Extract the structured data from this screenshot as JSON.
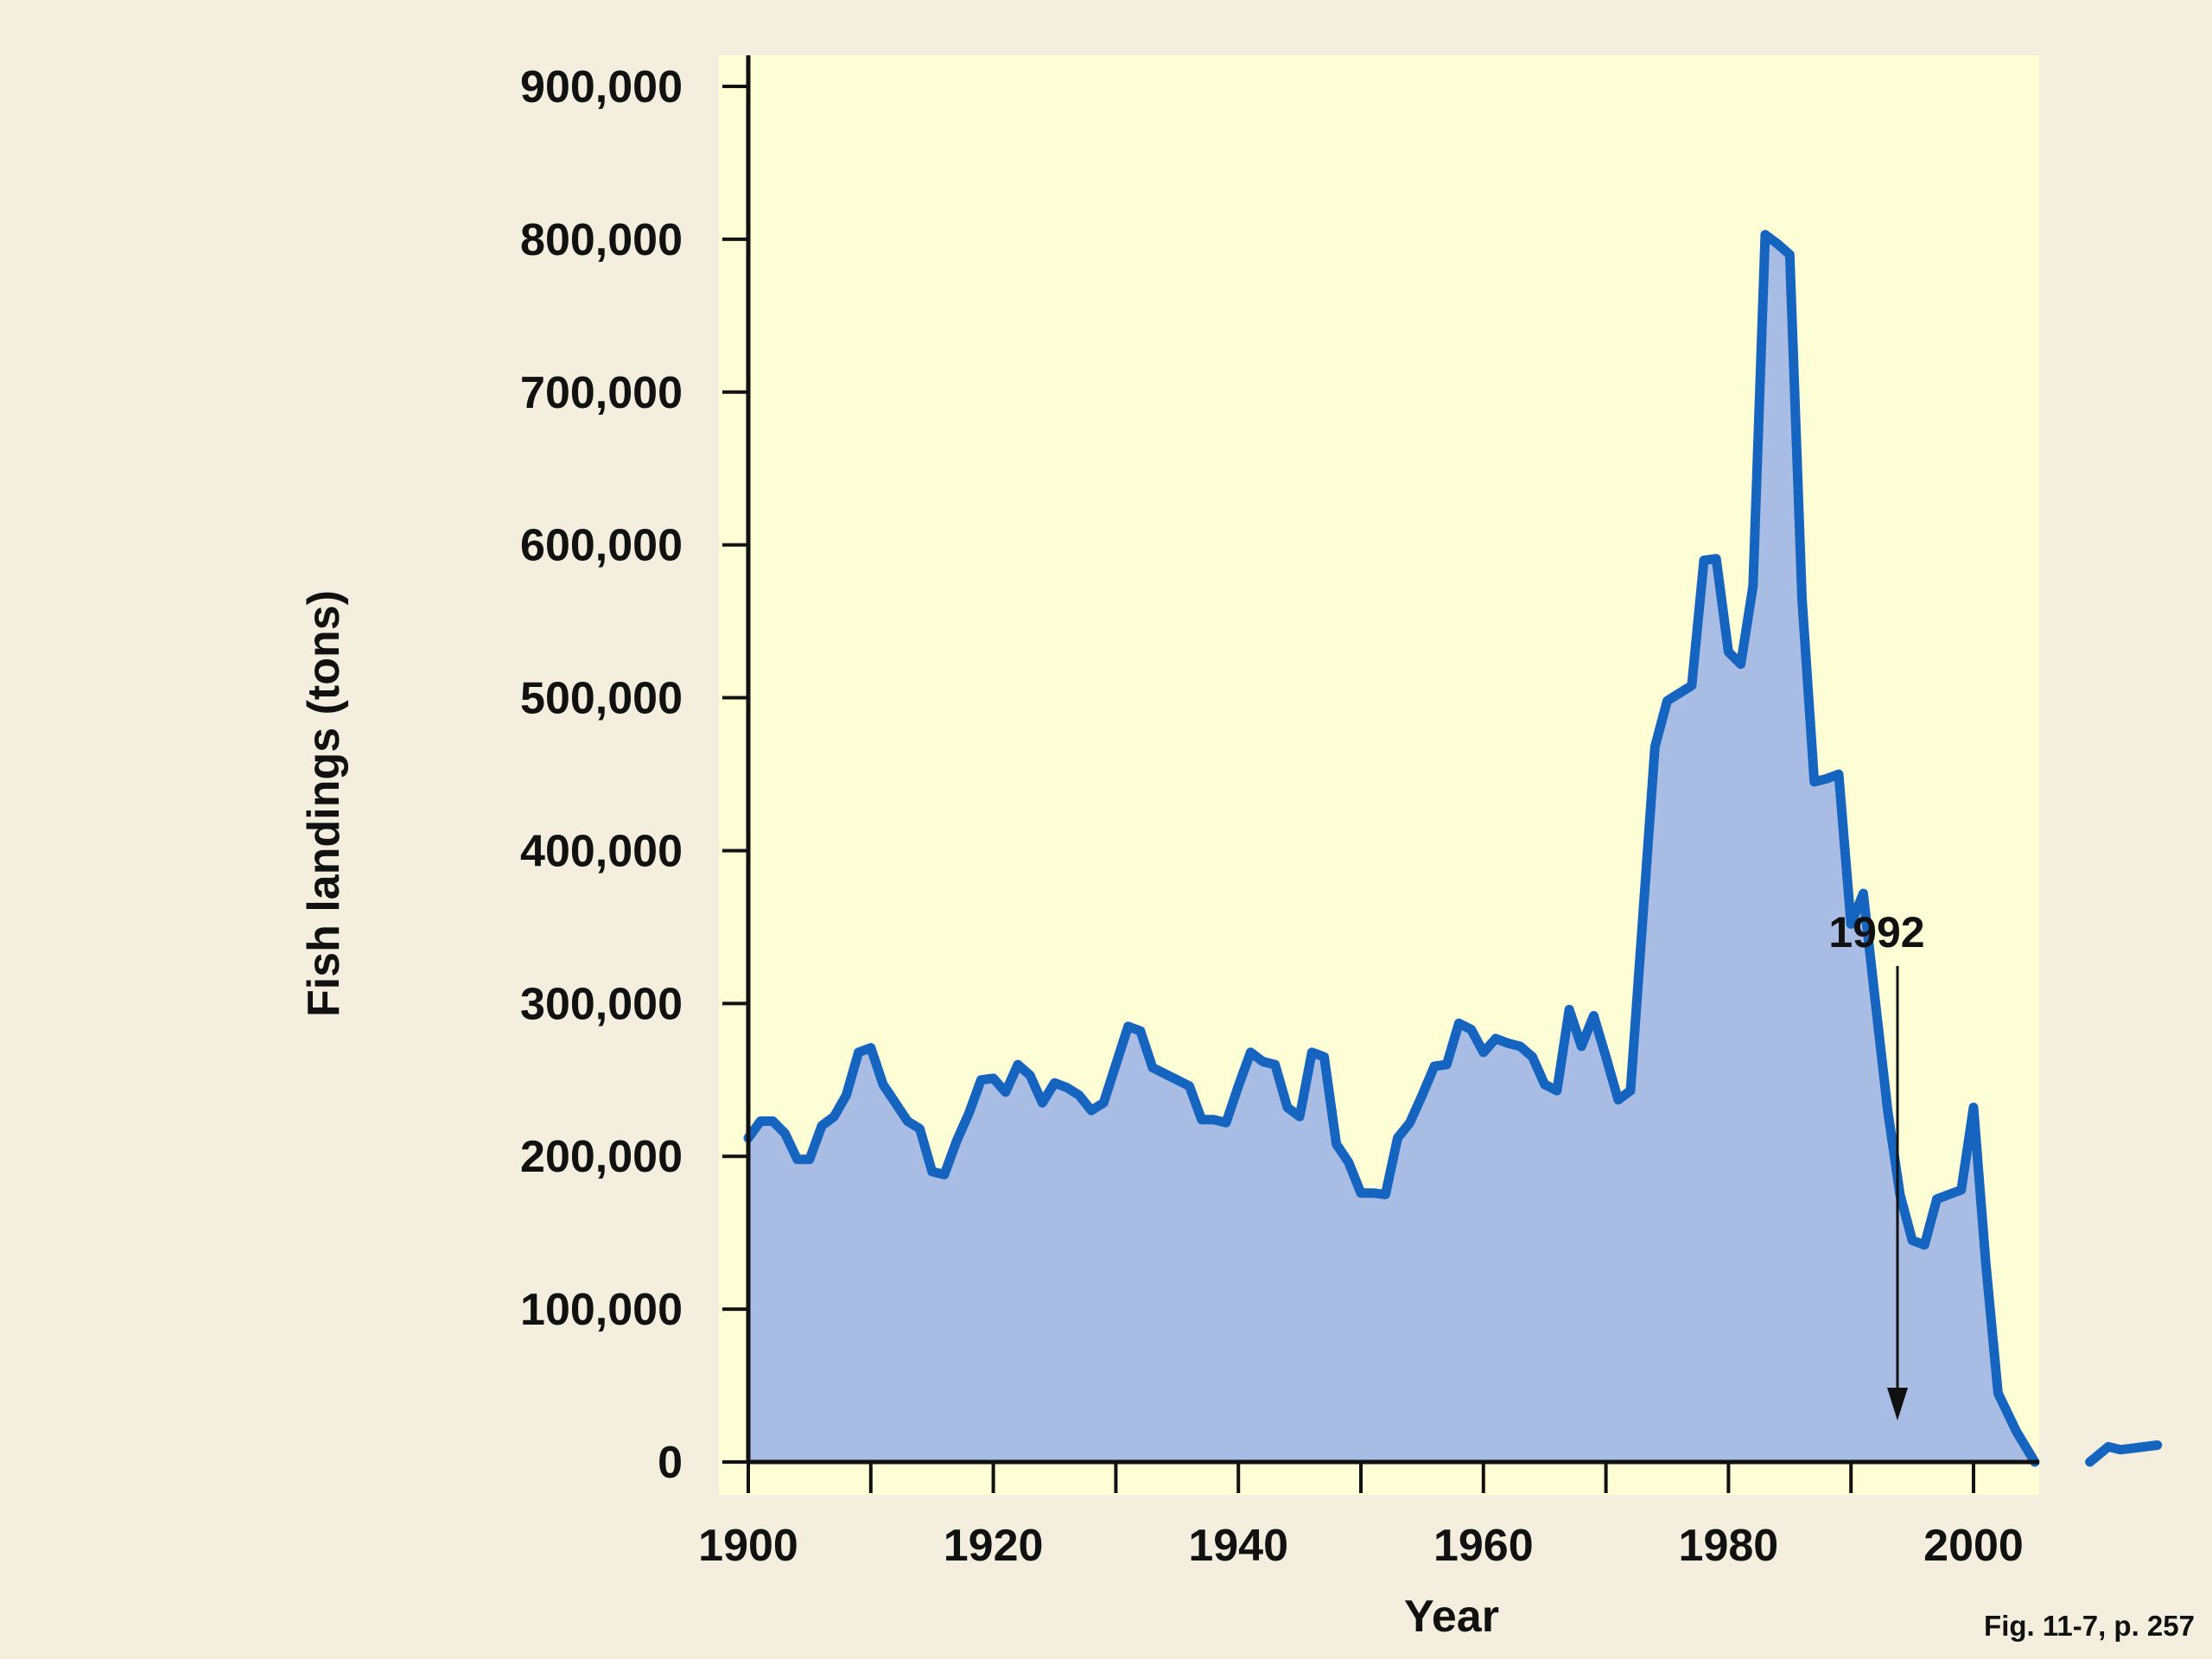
{
  "chart_data": {
    "type": "area",
    "xlabel": "Year",
    "ylabel": "Fish landings (tons)",
    "xlim": [
      1900,
      2005
    ],
    "ylim": [
      0,
      920000
    ],
    "x_ticks": [
      1900,
      1910,
      1920,
      1930,
      1940,
      1950,
      1960,
      1970,
      1980,
      1990,
      2000
    ],
    "x_tick_labels": [
      "1900",
      "1920",
      "1940",
      "1960",
      "1980",
      "2000"
    ],
    "x_tick_label_values": [
      1900,
      1920,
      1940,
      1960,
      1980,
      2000
    ],
    "y_ticks": [
      0,
      100000,
      200000,
      300000,
      400000,
      500000,
      600000,
      700000,
      800000,
      900000
    ],
    "y_tick_labels": [
      "0",
      "100,000",
      "200,000",
      "300,000",
      "400,000",
      "500,000",
      "600,000",
      "700,000",
      "800,000",
      "900,000"
    ],
    "grid": false,
    "colors": {
      "line": "#1565c0",
      "fill": "#a8bce4",
      "plot_bg": "#fefed6",
      "page_bg": "#f3eedd"
    },
    "annotation": {
      "text": "1992",
      "x": 1992
    },
    "caption": "Fig. 11-7, p. 257",
    "series": [
      {
        "points": [
          [
            1900,
            212000
          ],
          [
            1901,
            223000
          ],
          [
            1902,
            223000
          ],
          [
            1903,
            215000
          ],
          [
            1904,
            198000
          ],
          [
            1905,
            198000
          ],
          [
            1906,
            220000
          ],
          [
            1907,
            226000
          ],
          [
            1908,
            240000
          ],
          [
            1909,
            268000
          ],
          [
            1910,
            271000
          ],
          [
            1911,
            247000
          ],
          [
            1912,
            235000
          ],
          [
            1913,
            223000
          ],
          [
            1914,
            218000
          ],
          [
            1915,
            190000
          ],
          [
            1916,
            188000
          ],
          [
            1917,
            210000
          ],
          [
            1918,
            228000
          ],
          [
            1919,
            250000
          ],
          [
            1920,
            251000
          ],
          [
            1921,
            242000
          ],
          [
            1922,
            260000
          ],
          [
            1923,
            253000
          ],
          [
            1924,
            235000
          ],
          [
            1925,
            248000
          ],
          [
            1926,
            245000
          ],
          [
            1927,
            240000
          ],
          [
            1928,
            230000
          ],
          [
            1929,
            235000
          ],
          [
            1930,
            260000
          ],
          [
            1931,
            285000
          ],
          [
            1932,
            282000
          ],
          [
            1933,
            258000
          ],
          [
            1934,
            254000
          ],
          [
            1935,
            250000
          ],
          [
            1936,
            246000
          ],
          [
            1937,
            224000
          ],
          [
            1938,
            224000
          ],
          [
            1939,
            222000
          ],
          [
            1940,
            246000
          ],
          [
            1941,
            268000
          ],
          [
            1942,
            262000
          ],
          [
            1943,
            260000
          ],
          [
            1944,
            232000
          ],
          [
            1945,
            226000
          ],
          [
            1946,
            268000
          ],
          [
            1947,
            265000
          ],
          [
            1948,
            208000
          ],
          [
            1949,
            196000
          ],
          [
            1950,
            176000
          ],
          [
            1951,
            176000
          ],
          [
            1952,
            175000
          ],
          [
            1953,
            212000
          ],
          [
            1954,
            222000
          ],
          [
            1955,
            240000
          ],
          [
            1956,
            259000
          ],
          [
            1957,
            260000
          ],
          [
            1958,
            287000
          ],
          [
            1959,
            283000
          ],
          [
            1960,
            268000
          ],
          [
            1961,
            277000
          ],
          [
            1962,
            274000
          ],
          [
            1963,
            272000
          ],
          [
            1964,
            265000
          ],
          [
            1965,
            247000
          ],
          [
            1966,
            243000
          ],
          [
            1967,
            296000
          ],
          [
            1968,
            272000
          ],
          [
            1969,
            292000
          ],
          [
            1970,
            265000
          ],
          [
            1971,
            237000
          ],
          [
            1972,
            243000
          ],
          [
            1973,
            355000
          ],
          [
            1974,
            468000
          ],
          [
            1975,
            498000
          ],
          [
            1976,
            503000
          ],
          [
            1977,
            508000
          ],
          [
            1978,
            590000
          ],
          [
            1979,
            591000
          ],
          [
            1980,
            530000
          ],
          [
            1981,
            522000
          ],
          [
            1982,
            573000
          ],
          [
            1983,
            803000
          ],
          [
            1984,
            797000
          ],
          [
            1985,
            790000
          ],
          [
            1986,
            565000
          ],
          [
            1987,
            445000
          ],
          [
            1988,
            447000
          ],
          [
            1989,
            450000
          ],
          [
            1990,
            352000
          ],
          [
            1991,
            372000
          ],
          [
            1992,
            300000
          ],
          [
            1993,
            230000
          ],
          [
            1994,
            175000
          ],
          [
            1995,
            145000
          ],
          [
            1996,
            142000
          ],
          [
            1997,
            172000
          ],
          [
            1998,
            175000
          ],
          [
            1999,
            178000
          ],
          [
            2000,
            232000
          ]
        ]
      }
    ]
  }
}
